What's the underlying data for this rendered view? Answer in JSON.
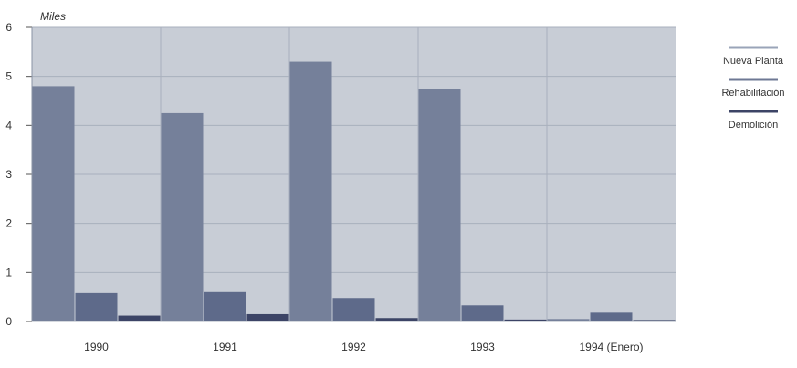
{
  "chart_data": {
    "type": "bar",
    "unit_label": "Miles",
    "categories": [
      "1990",
      "1991",
      "1992",
      "1993",
      "1994 (Enero)"
    ],
    "series": [
      {
        "name": "Nueva Planta",
        "values": [
          4.8,
          4.25,
          5.3,
          4.75,
          0.05
        ]
      },
      {
        "name": "Rehabilitación",
        "values": [
          0.58,
          0.6,
          0.48,
          0.33,
          0.18
        ]
      },
      {
        "name": "Demolición",
        "values": [
          0.12,
          0.15,
          0.07,
          0.04,
          0.03
        ]
      }
    ],
    "ylim": [
      0,
      6
    ],
    "yticks": [
      0,
      1,
      2,
      3,
      4,
      5,
      6
    ],
    "grid": true,
    "legend_position": "right",
    "colors": {
      "plot_background": "#c8cdd6",
      "gridline": "#a9b0bd",
      "series": [
        "#75809a",
        "#5e6a8a",
        "#3c4466"
      ],
      "legend_lines": [
        "#9aa4b8",
        "#6e7894",
        "#3c4466"
      ]
    }
  }
}
